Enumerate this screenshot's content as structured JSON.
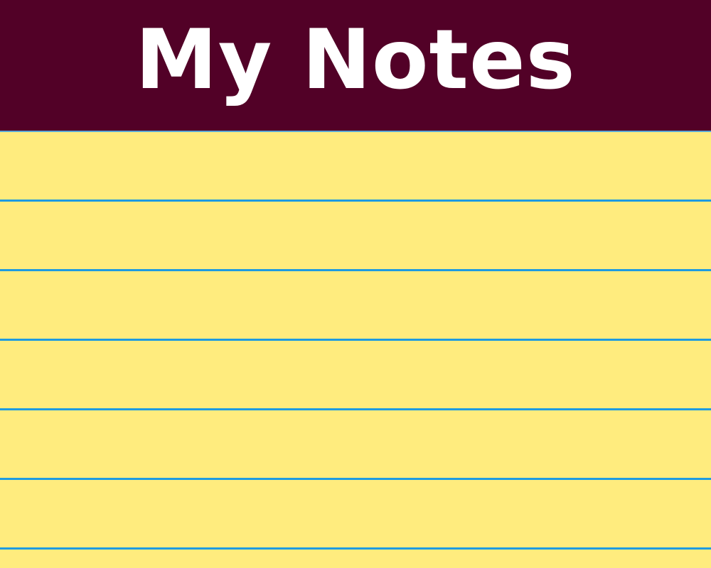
{
  "header": {
    "title": "My Notes"
  },
  "colors": {
    "header_background": "#520127",
    "title_text": "#FFFFFF",
    "paper_background": "#FFEC7E",
    "rule_line": "#1E9BE0"
  }
}
